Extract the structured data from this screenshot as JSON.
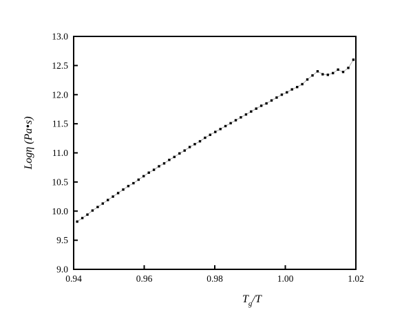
{
  "chart_data": {
    "type": "scatter",
    "title": "",
    "xlabel_main": "T",
    "xlabel_sub": "g",
    "xlabel_tail": "/T",
    "ylabel": "Logη (Pa•s)",
    "xlim": [
      0.94,
      1.02
    ],
    "ylim": [
      9.0,
      13.0
    ],
    "x_tick_values": [
      0.94,
      0.96,
      0.98,
      1.0,
      1.02
    ],
    "x_tick_labels": [
      "0.94",
      "0.96",
      "0.98",
      "1.00",
      "1.02"
    ],
    "y_tick_values": [
      9.0,
      9.5,
      10.0,
      10.5,
      11.0,
      11.5,
      12.0,
      12.5,
      13.0
    ],
    "y_tick_labels": [
      "9.0",
      "9.5",
      "10.0",
      "10.5",
      "11.0",
      "11.5",
      "12.0",
      "12.5",
      "13.0"
    ],
    "grid": false,
    "legend": "none",
    "marker_color": "#000000",
    "line_color": "#9a9a9a",
    "frame_color": "#000000",
    "x": [
      0.941,
      0.94245,
      0.9439,
      0.94535,
      0.9468,
      0.94825,
      0.9497,
      0.95115,
      0.9526,
      0.95405,
      0.9555,
      0.95695,
      0.9584,
      0.95985,
      0.9613,
      0.96275,
      0.9642,
      0.96565,
      0.9671,
      0.96855,
      0.97,
      0.97145,
      0.9729,
      0.97435,
      0.9758,
      0.97725,
      0.9787,
      0.98015,
      0.9816,
      0.98305,
      0.9845,
      0.98595,
      0.9874,
      0.98885,
      0.9903,
      0.99175,
      0.9932,
      0.99465,
      0.9961,
      0.99755,
      0.999,
      1.00045,
      1.0019,
      1.00335,
      1.0048,
      1.00625,
      1.0077,
      1.00915,
      1.0106,
      1.01205,
      1.0135,
      1.01495,
      1.0164,
      1.01785,
      1.0193
    ],
    "y": [
      9.82,
      9.88,
      9.94,
      10.01,
      10.07,
      10.13,
      10.19,
      10.25,
      10.31,
      10.37,
      10.43,
      10.48,
      10.54,
      10.6,
      10.66,
      10.71,
      10.77,
      10.82,
      10.88,
      10.93,
      10.99,
      11.04,
      11.1,
      11.15,
      11.2,
      11.26,
      11.31,
      11.36,
      11.41,
      11.46,
      11.51,
      11.56,
      11.61,
      11.66,
      11.71,
      11.76,
      11.81,
      11.85,
      11.9,
      11.95,
      12.0,
      12.04,
      12.09,
      12.13,
      12.18,
      12.26,
      12.33,
      12.4,
      12.35,
      12.34,
      12.37,
      12.43,
      12.39,
      12.46,
      12.6
    ]
  }
}
